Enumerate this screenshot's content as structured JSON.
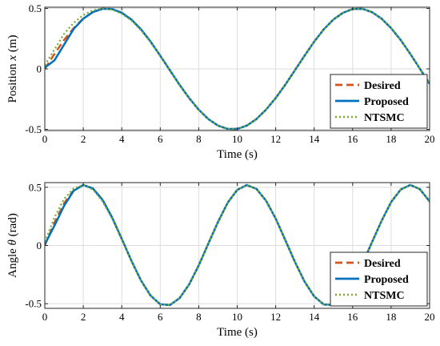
{
  "chart_data": [
    {
      "type": "line",
      "xlabel": "Time (s)",
      "ylabel_prefix": "Position ",
      "ylabel_var": "x",
      "ylabel_suffix": " (m)",
      "xlim": [
        0,
        20
      ],
      "ylim": [
        -0.51,
        0.51
      ],
      "xticks": [
        0,
        2,
        4,
        6,
        8,
        10,
        12,
        14,
        16,
        18,
        20
      ],
      "yticks": [
        -0.5,
        0,
        0.5
      ],
      "ytick_labels": [
        "-0.5",
        "0",
        "0.5"
      ],
      "grid": true,
      "legend": "bottom-right",
      "series": [
        {
          "name": "Desired",
          "color": "#D95319",
          "dash": "dashed",
          "x": [
            0,
            0.5,
            1,
            1.5,
            2,
            2.5,
            3,
            3.5,
            4,
            4.5,
            5,
            5.5,
            6,
            6.5,
            7,
            7.5,
            8,
            8.5,
            9,
            9.5,
            10,
            10.5,
            11,
            11.5,
            12,
            12.5,
            13,
            13.5,
            14,
            14.5,
            15,
            15.5,
            16,
            16.5,
            17,
            17.5,
            18,
            18.5,
            19,
            19.5,
            20
          ],
          "y": [
            0,
            0.123,
            0.238,
            0.337,
            0.416,
            0.47,
            0.497,
            0.495,
            0.464,
            0.408,
            0.327,
            0.225,
            0.109,
            -0.011,
            -0.131,
            -0.241,
            -0.338,
            -0.415,
            -0.469,
            -0.496,
            -0.497,
            -0.469,
            -0.415,
            -0.337,
            -0.241,
            -0.131,
            -0.011,
            0.109,
            0.225,
            0.327,
            0.408,
            0.464,
            0.495,
            0.497,
            0.47,
            0.416,
            0.337,
            0.238,
            0.123,
            0.0,
            -0.123
          ]
        },
        {
          "name": "Proposed",
          "color": "#0072BD",
          "dash": "solid",
          "x": [
            0,
            0.5,
            1,
            1.5,
            2,
            2.5,
            3,
            3.5,
            4,
            4.5,
            5,
            5.5,
            6,
            6.5,
            7,
            7.5,
            8,
            8.5,
            9,
            9.5,
            10,
            10.5,
            11,
            11.5,
            12,
            12.5,
            13,
            13.5,
            14,
            14.5,
            15,
            15.5,
            16,
            16.5,
            17,
            17.5,
            18,
            18.5,
            19,
            19.5,
            20
          ],
          "y": [
            0.01,
            0.07,
            0.2,
            0.33,
            0.415,
            0.47,
            0.497,
            0.495,
            0.464,
            0.408,
            0.327,
            0.225,
            0.109,
            -0.011,
            -0.131,
            -0.241,
            -0.338,
            -0.415,
            -0.469,
            -0.496,
            -0.497,
            -0.469,
            -0.415,
            -0.337,
            -0.241,
            -0.131,
            -0.011,
            0.109,
            0.225,
            0.327,
            0.408,
            0.464,
            0.495,
            0.497,
            0.47,
            0.416,
            0.337,
            0.238,
            0.123,
            0.0,
            -0.123
          ]
        },
        {
          "name": "NTSMC",
          "color": "#77AC30",
          "dash": "dotted",
          "x": [
            0,
            0.5,
            1,
            1.5,
            2,
            2.5,
            3,
            3.5,
            4,
            4.5,
            5,
            5.5,
            6,
            6.5,
            7,
            7.5,
            8,
            8.5,
            9,
            9.5,
            10,
            10.5,
            11,
            11.5,
            12,
            12.5,
            13,
            13.5,
            14,
            14.5,
            15,
            15.5,
            16,
            16.5,
            17,
            17.5,
            18,
            18.5,
            19,
            19.5,
            20
          ],
          "y": [
            0.03,
            0.16,
            0.29,
            0.38,
            0.445,
            0.485,
            0.5,
            0.49,
            0.455,
            0.4,
            0.32,
            0.22,
            0.105,
            -0.015,
            -0.134,
            -0.243,
            -0.339,
            -0.416,
            -0.469,
            -0.496,
            -0.497,
            -0.469,
            -0.415,
            -0.337,
            -0.241,
            -0.131,
            -0.011,
            0.109,
            0.225,
            0.327,
            0.408,
            0.464,
            0.495,
            0.497,
            0.47,
            0.416,
            0.337,
            0.238,
            0.123,
            0.0,
            -0.123
          ]
        }
      ]
    },
    {
      "type": "line",
      "xlabel": "Time (s)",
      "ylabel_prefix": "Angle ",
      "ylabel_var": "θ",
      "ylabel_suffix": " (rad)",
      "xlim": [
        0,
        20
      ],
      "ylim": [
        -0.54,
        0.54
      ],
      "xticks": [
        0,
        2,
        4,
        6,
        8,
        10,
        12,
        14,
        16,
        18,
        20
      ],
      "yticks": [
        -0.5,
        0,
        0.5
      ],
      "ytick_labels": [
        "-0.5",
        "0",
        "0.5"
      ],
      "grid": true,
      "legend": "bottom-right",
      "series": [
        {
          "name": "Desired",
          "color": "#D95319",
          "dash": "dashed",
          "x": [
            0,
            0.5,
            1,
            1.5,
            2,
            2.5,
            3,
            3.5,
            4,
            4.5,
            5,
            5.5,
            6,
            6.5,
            7,
            7.5,
            8,
            8.5,
            9,
            9.5,
            10,
            10.5,
            11,
            11.5,
            12,
            12.5,
            13,
            13.5,
            14,
            14.5,
            15,
            15.5,
            16,
            16.5,
            17,
            17.5,
            18,
            18.5,
            19,
            19.5,
            20
          ],
          "y": [
            0,
            0.196,
            0.362,
            0.474,
            0.519,
            0.49,
            0.392,
            0.24,
            0.057,
            -0.131,
            -0.301,
            -0.431,
            -0.505,
            -0.512,
            -0.453,
            -0.335,
            -0.171,
            0.016,
            0.201,
            0.366,
            0.477,
            0.519,
            0.486,
            0.385,
            0.231,
            0.046,
            -0.141,
            -0.31,
            -0.437,
            -0.507,
            -0.51,
            -0.448,
            -0.327,
            -0.161,
            0.026,
            0.21,
            0.373,
            0.481,
            0.52,
            0.483,
            0.378
          ]
        },
        {
          "name": "Proposed",
          "color": "#0072BD",
          "dash": "solid",
          "x": [
            0,
            0.5,
            1,
            1.5,
            2,
            2.5,
            3,
            3.5,
            4,
            4.5,
            5,
            5.5,
            6,
            6.5,
            7,
            7.5,
            8,
            8.5,
            9,
            9.5,
            10,
            10.5,
            11,
            11.5,
            12,
            12.5,
            13,
            13.5,
            14,
            14.5,
            15,
            15.5,
            16,
            16.5,
            17,
            17.5,
            18,
            18.5,
            19,
            19.5,
            20
          ],
          "y": [
            0.01,
            0.17,
            0.34,
            0.47,
            0.52,
            0.49,
            0.392,
            0.24,
            0.057,
            -0.131,
            -0.301,
            -0.431,
            -0.505,
            -0.512,
            -0.453,
            -0.335,
            -0.171,
            0.016,
            0.201,
            0.366,
            0.477,
            0.519,
            0.486,
            0.385,
            0.231,
            0.046,
            -0.141,
            -0.31,
            -0.437,
            -0.507,
            -0.51,
            -0.448,
            -0.327,
            -0.161,
            0.026,
            0.21,
            0.373,
            0.481,
            0.52,
            0.483,
            0.378
          ]
        },
        {
          "name": "NTSMC",
          "color": "#77AC30",
          "dash": "dotted",
          "x": [
            0,
            0.5,
            1,
            1.5,
            2,
            2.5,
            3,
            3.5,
            4,
            4.5,
            5,
            5.5,
            6,
            6.5,
            7,
            7.5,
            8,
            8.5,
            9,
            9.5,
            10,
            10.5,
            11,
            11.5,
            12,
            12.5,
            13,
            13.5,
            14,
            14.5,
            15,
            15.5,
            16,
            16.5,
            17,
            17.5,
            18,
            18.5,
            19,
            19.5,
            20
          ],
          "y": [
            0.03,
            0.24,
            0.4,
            0.49,
            0.52,
            0.48,
            0.38,
            0.23,
            0.05,
            -0.135,
            -0.303,
            -0.432,
            -0.505,
            -0.512,
            -0.453,
            -0.335,
            -0.171,
            0.016,
            0.201,
            0.366,
            0.477,
            0.519,
            0.486,
            0.385,
            0.231,
            0.046,
            -0.141,
            -0.31,
            -0.437,
            -0.507,
            -0.51,
            -0.448,
            -0.327,
            -0.161,
            0.026,
            0.21,
            0.373,
            0.481,
            0.52,
            0.483,
            0.378
          ]
        }
      ]
    }
  ]
}
